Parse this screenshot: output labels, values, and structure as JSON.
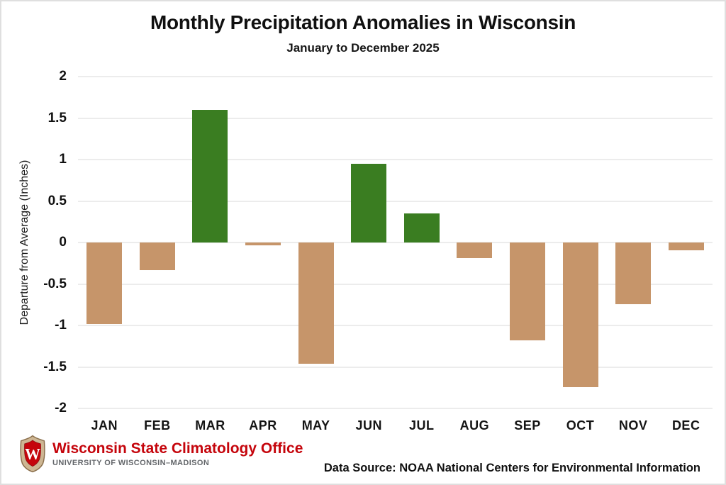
{
  "chart_data": {
    "type": "bar",
    "title": "Monthly Precipitation Anomalies in Wisconsin",
    "subtitle": "January to December 2025",
    "categories": [
      "JAN",
      "FEB",
      "MAR",
      "APR",
      "MAY",
      "JUN",
      "JUL",
      "AUG",
      "SEP",
      "OCT",
      "NOV",
      "DEC"
    ],
    "values": [
      -0.98,
      -0.33,
      1.6,
      -0.03,
      -1.46,
      0.95,
      0.35,
      -0.19,
      -1.18,
      -1.74,
      -0.74,
      -0.09
    ],
    "xlabel": "",
    "ylabel": "Departure from Average (Inches)",
    "ylim": [
      -2,
      2
    ],
    "ytick_step": 0.5,
    "grid": true,
    "legend": "none",
    "colors": {
      "positive": "#3a7d21",
      "negative": "#c6956a",
      "gridline": "#ececec"
    }
  },
  "footer": {
    "org_name": "Wisconsin State Climatology Office",
    "university": "UNIVERSITY OF WISCONSIN–MADISON",
    "data_source": "Data Source: NOAA National Centers for Environmental Information",
    "brand_color": "#c5050c",
    "logo": "uw-crest-shield-w"
  }
}
